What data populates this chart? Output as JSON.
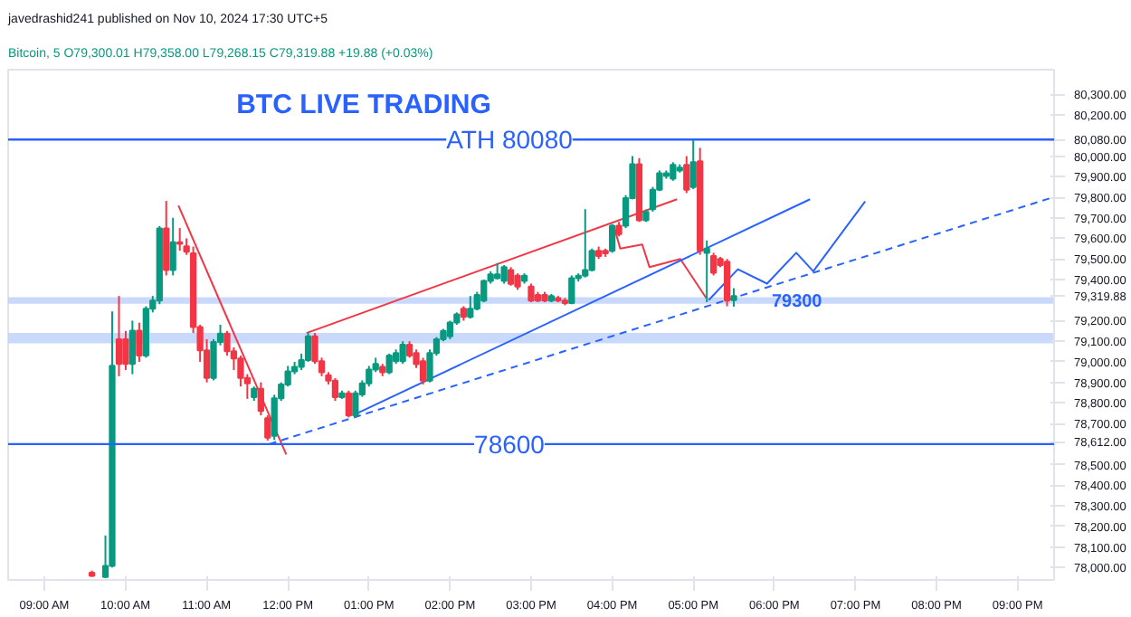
{
  "chart_data": {
    "type": "candlestick",
    "title": "BTC LIVE TRADING",
    "subtitle": "Bitcoin, 5  O79,300.01 H79,358.00 L79,268.15 C79,319.88 +19.88 (+0.03%)",
    "annotations": [
      "javedrashid241 published on Nov 10, 2024 17:30 UTC+5"
    ],
    "x": [
      9.583,
      9.75,
      9.833,
      9.917,
      10.0,
      10.083,
      10.167,
      10.25,
      10.333,
      10.417,
      10.5,
      10.583,
      10.667,
      10.75,
      10.833,
      10.917,
      11.0,
      11.083,
      11.167,
      11.25,
      11.333,
      11.417,
      11.5,
      11.583,
      11.667,
      11.75,
      11.833,
      11.917,
      12.0,
      12.083,
      12.167,
      12.25,
      12.333,
      12.417,
      12.5,
      12.583,
      12.667,
      12.75,
      12.833,
      12.917,
      13.0,
      13.083,
      13.167,
      13.25,
      13.333,
      13.417,
      13.5,
      13.583,
      13.667,
      13.75,
      13.833,
      13.917,
      14.0,
      14.083,
      14.167,
      14.25,
      14.333,
      14.417,
      14.5,
      14.583,
      14.667,
      14.75,
      14.833,
      14.917,
      15.0,
      15.083,
      15.167,
      15.25,
      15.333,
      15.417,
      15.5,
      15.583,
      15.667,
      15.75,
      15.833,
      15.917,
      16.0,
      16.083,
      16.167,
      16.25,
      16.333,
      16.417,
      16.5,
      16.583,
      16.667,
      16.75,
      16.833,
      16.917,
      17.0,
      17.083,
      17.167,
      17.25,
      17.333,
      17.417,
      17.5
    ],
    "ohlc": [
      [
        77975,
        77985,
        77955,
        77960
      ],
      [
        77954,
        78156,
        77950,
        78008
      ],
      [
        78008,
        79245,
        78000,
        78981
      ],
      [
        79110,
        79320,
        78930,
        78990
      ],
      [
        79110,
        79150,
        78960,
        78990
      ],
      [
        78990,
        79200,
        78940,
        79151
      ],
      [
        79151,
        79190,
        79000,
        79030
      ],
      [
        79030,
        79270,
        79020,
        79258
      ],
      [
        79258,
        79320,
        79240,
        79298
      ],
      [
        79298,
        79660,
        79280,
        79648
      ],
      [
        79648,
        79782,
        79420,
        79446
      ],
      [
        79446,
        79700,
        79420,
        79581
      ],
      [
        79581,
        79650,
        79540,
        79573
      ],
      [
        79562,
        79600,
        79520,
        79535
      ],
      [
        79527,
        79560,
        79140,
        79169
      ],
      [
        79169,
        79180,
        79000,
        79056
      ],
      [
        79056,
        79110,
        78900,
        78922
      ],
      [
        78922,
        79110,
        78910,
        79097
      ],
      [
        79097,
        79180,
        79080,
        79137
      ],
      [
        79137,
        79150,
        79030,
        79051
      ],
      [
        79051,
        79070,
        78960,
        79016
      ],
      [
        79016,
        79030,
        78880,
        78922
      ],
      [
        78922,
        78940,
        78820,
        78895
      ],
      [
        78828,
        78880,
        78810,
        78869
      ],
      [
        78869,
        78900,
        78740,
        78761
      ],
      [
        78726,
        78740,
        78617,
        78632
      ],
      [
        78640,
        78840,
        78620,
        78823
      ],
      [
        78823,
        78900,
        78810,
        78890
      ],
      [
        78890,
        78980,
        78880,
        78954
      ],
      [
        78954,
        79000,
        78940,
        78976
      ],
      [
        78976,
        79040,
        78960,
        79008
      ],
      [
        79008,
        79140,
        79000,
        79124
      ],
      [
        79124,
        79140,
        78990,
        79003
      ],
      [
        79003,
        79020,
        78930,
        78949
      ],
      [
        78935,
        78950,
        78890,
        78909
      ],
      [
        78909,
        78920,
        78810,
        78828
      ],
      [
        78828,
        78860,
        78820,
        78847
      ],
      [
        78847,
        78860,
        78730,
        78739
      ],
      [
        78739,
        78860,
        78730,
        78847
      ],
      [
        78841,
        78910,
        78830,
        78895
      ],
      [
        78895,
        78980,
        78880,
        78962
      ],
      [
        78962,
        79020,
        78950,
        78990
      ],
      [
        78976,
        78990,
        78930,
        78949
      ],
      [
        78949,
        79040,
        78940,
        79030
      ],
      [
        79003,
        79060,
        78990,
        79043
      ],
      [
        79003,
        79100,
        78990,
        79083
      ],
      [
        79083,
        79100,
        79020,
        79030
      ],
      [
        79043,
        79060,
        78970,
        78989
      ],
      [
        79003,
        79020,
        78890,
        78908
      ],
      [
        78908,
        79060,
        78900,
        79043
      ],
      [
        79043,
        79120,
        79030,
        79110
      ],
      [
        79110,
        79160,
        79100,
        79150
      ],
      [
        79124,
        79200,
        79110,
        79191
      ],
      [
        79191,
        79240,
        79180,
        79231
      ],
      [
        79258,
        79270,
        79200,
        79218
      ],
      [
        79218,
        79320,
        79210,
        79258
      ],
      [
        79258,
        79340,
        79250,
        79325
      ],
      [
        79298,
        79400,
        79290,
        79393
      ],
      [
        79393,
        79440,
        79380,
        79425
      ],
      [
        79406,
        79480,
        79400,
        79425
      ],
      [
        79393,
        79470,
        79380,
        79460
      ],
      [
        79446,
        79460,
        79370,
        79379
      ],
      [
        79419,
        79430,
        79350,
        79366
      ],
      [
        79393,
        79430,
        79380,
        79419
      ],
      [
        79366,
        79380,
        79290,
        79298
      ],
      [
        79325,
        79340,
        79290,
        79298
      ],
      [
        79325,
        79340,
        79290,
        79298
      ],
      [
        79298,
        79330,
        79290,
        79320
      ],
      [
        79310,
        79320,
        79290,
        79298
      ],
      [
        79298,
        79310,
        79275,
        79285
      ],
      [
        79285,
        79420,
        79280,
        79406
      ],
      [
        79406,
        79430,
        79390,
        79419
      ],
      [
        79419,
        79742,
        79410,
        79446
      ],
      [
        79446,
        79550,
        79440,
        79540
      ],
      [
        79540,
        79560,
        79500,
        79514
      ],
      [
        79540,
        79550,
        79510,
        79527
      ],
      [
        79540,
        79670,
        79530,
        79661
      ],
      [
        79661,
        79680,
        79610,
        79621
      ],
      [
        79661,
        79810,
        79650,
        79796
      ],
      [
        79796,
        80000,
        79790,
        79960
      ],
      [
        79960,
        79990,
        79680,
        79688
      ],
      [
        79688,
        79740,
        79680,
        79729
      ],
      [
        79742,
        79850,
        79730,
        79836
      ],
      [
        79836,
        79930,
        79830,
        79917
      ],
      [
        79903,
        79930,
        79890,
        79917
      ],
      [
        79890,
        79970,
        79880,
        79957
      ],
      [
        79930,
        79960,
        79920,
        79944
      ],
      [
        79957,
        80000,
        79820,
        79836
      ],
      [
        79850,
        80078,
        79840,
        79970
      ],
      [
        79975,
        80040,
        79520,
        79540
      ],
      [
        79530,
        79590,
        79290,
        79550
      ],
      [
        79514,
        79530,
        79420,
        79433
      ],
      [
        79500,
        79510,
        79460,
        79470
      ],
      [
        79487,
        79500,
        79270,
        79298
      ],
      [
        79300.01,
        79358,
        79268.15,
        79319.88
      ]
    ],
    "colors": [
      "#f23645",
      "#089981",
      "#089981",
      "#f23645",
      "#f23645",
      "#089981",
      "#f23645",
      "#089981",
      "#089981",
      "#089981",
      "#f23645",
      "#089981",
      "#f23645",
      "#f23645",
      "#f23645",
      "#f23645",
      "#f23645",
      "#089981",
      "#089981",
      "#f23645",
      "#f23645",
      "#f23645",
      "#f23645",
      "#089981",
      "#f23645",
      "#f23645",
      "#089981",
      "#089981",
      "#089981",
      "#089981",
      "#089981",
      "#089981",
      "#f23645",
      "#f23645",
      "#f23645",
      "#f23645",
      "#089981",
      "#f23645",
      "#089981",
      "#089981",
      "#089981",
      "#089981",
      "#f23645",
      "#089981",
      "#089981",
      "#089981",
      "#f23645",
      "#f23645",
      "#f23645",
      "#089981",
      "#089981",
      "#089981",
      "#089981",
      "#089981",
      "#f23645",
      "#089981",
      "#089981",
      "#089981",
      "#089981",
      "#089981",
      "#089981",
      "#f23645",
      "#f23645",
      "#089981",
      "#f23645",
      "#f23645",
      "#f23645",
      "#089981",
      "#f23645",
      "#f23645",
      "#089981",
      "#089981",
      "#089981",
      "#089981",
      "#f23645",
      "#f23645",
      "#089981",
      "#f23645",
      "#089981",
      "#089981",
      "#f23645",
      "#089981",
      "#089981",
      "#089981",
      "#089981",
      "#089981",
      "#089981",
      "#f23645",
      "#089981",
      "#f23645",
      "#089981",
      "#f23645",
      "#f23645",
      "#f23645",
      "#089981"
    ],
    "series": [
      {
        "type": "line",
        "color": "#f23645",
        "line_style": "solid",
        "x": [
          10.65,
          11.98
        ],
        "values": [
          79760,
          78550
        ]
      },
      {
        "type": "line",
        "color": "#f23645",
        "line_style": "solid",
        "x": [
          12.23,
          16.8
        ],
        "values": [
          79140,
          79790
        ]
      },
      {
        "type": "line",
        "color": "#f23645",
        "line_style": "solid",
        "x": [
          16.02,
          16.1,
          16.37,
          16.46,
          16.84,
          17.16
        ],
        "values": [
          79660,
          79550,
          79570,
          79460,
          79500,
          79310
        ]
      },
      {
        "type": "line",
        "color": "#2962ff",
        "line_style": "solid",
        "x": [
          12.8,
          18.44
        ],
        "values": [
          78740,
          79790
        ]
      },
      {
        "type": "line",
        "color": "#2962ff",
        "line_style": "dashed",
        "x": [
          11.77,
          21.44
        ],
        "values": [
          78600,
          79800
        ]
      },
      {
        "type": "line",
        "color": "#2962ff",
        "line_style": "solid",
        "x": [
          17.19,
          17.55,
          17.91,
          18.27,
          18.48,
          19.12
        ],
        "values": [
          79300,
          79450,
          79380,
          79530,
          79440,
          79780
        ]
      }
    ],
    "ref_lines": [
      {
        "axis": "y",
        "value": 80080,
        "label": "ATH 80080",
        "color": "#2962ff"
      },
      {
        "axis": "y",
        "value": 78600,
        "label": "78600",
        "color": "#2962ff"
      }
    ],
    "bands": [
      {
        "axis": "y",
        "from": 79282,
        "to": 79314,
        "label": "79300",
        "color": "#bcd0fb"
      },
      {
        "axis": "y",
        "from": 79090,
        "to": 79140,
        "color": "#bcd0fb"
      }
    ],
    "xlim": [
      8.55,
      21.45
    ],
    "ylim": [
      77940,
      80420
    ],
    "xticks": [
      {
        "value": 9,
        "label": "09:00 AM"
      },
      {
        "value": 10,
        "label": "10:00 AM"
      },
      {
        "value": 11,
        "label": "11:00 AM"
      },
      {
        "value": 12,
        "label": "12:00 PM"
      },
      {
        "value": 13,
        "label": "01:00 PM"
      },
      {
        "value": 14,
        "label": "02:00 PM"
      },
      {
        "value": 15,
        "label": "03:00 PM"
      },
      {
        "value": 16,
        "label": "04:00 PM"
      },
      {
        "value": 17,
        "label": "05:00 PM"
      },
      {
        "value": 18,
        "label": "06:00 PM"
      },
      {
        "value": 19,
        "label": "07:00 PM"
      },
      {
        "value": 20,
        "label": "08:00 PM"
      },
      {
        "value": 21,
        "label": "09:00 PM"
      }
    ],
    "yticks": [
      {
        "value": 78000,
        "label": "78,000.00"
      },
      {
        "value": 78100,
        "label": "78,100.00"
      },
      {
        "value": 78200,
        "label": "78,200.00"
      },
      {
        "value": 78300,
        "label": "78,300.00"
      },
      {
        "value": 78400,
        "label": "78,400.00"
      },
      {
        "value": 78500,
        "label": "78,500.00"
      },
      {
        "value": 78612,
        "label": "78,612.00"
      },
      {
        "value": 78700,
        "label": "78,700.00"
      },
      {
        "value": 78800,
        "label": "78,800.00"
      },
      {
        "value": 78900,
        "label": "78,900.00"
      },
      {
        "value": 79000,
        "label": "79,000.00"
      },
      {
        "value": 79100,
        "label": "79,100.00"
      },
      {
        "value": 79200,
        "label": "79,200.00"
      },
      {
        "value": 79319.88,
        "label": "79,319.88"
      },
      {
        "value": 79400,
        "label": "79,400.00"
      },
      {
        "value": 79500,
        "label": "79,500.00"
      },
      {
        "value": 79600,
        "label": "79,600.00"
      },
      {
        "value": 79700,
        "label": "79,700.00"
      },
      {
        "value": 79800,
        "label": "79,800.00"
      },
      {
        "value": 79900,
        "label": "79,900.00"
      },
      {
        "value": 80000,
        "label": "80,000.00"
      },
      {
        "value": 80080,
        "label": "80,080.00"
      },
      {
        "value": 80200,
        "label": "80,200.00"
      },
      {
        "value": 80300,
        "label": "80,300.00"
      }
    ],
    "grid": false
  }
}
